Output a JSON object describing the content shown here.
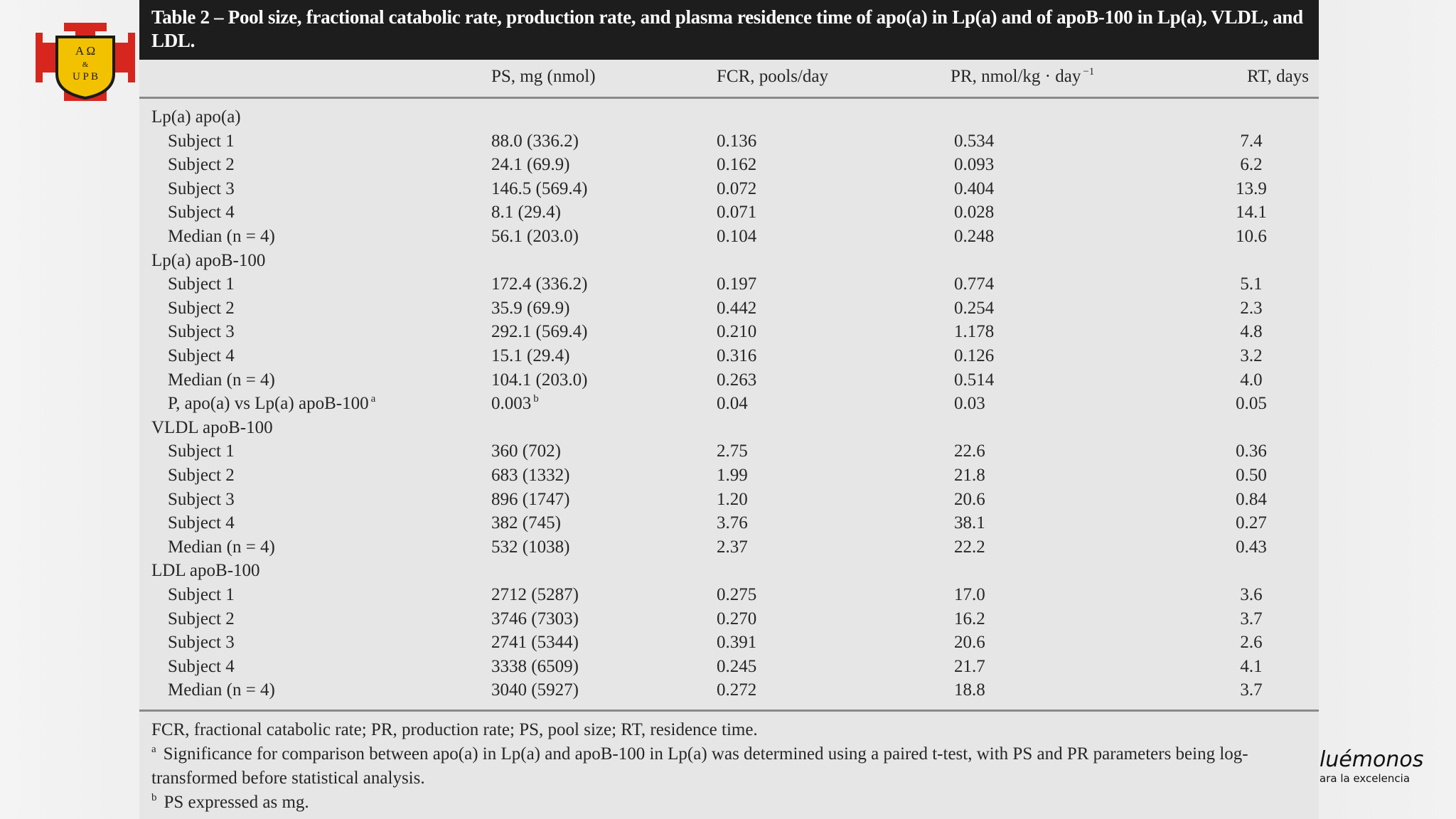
{
  "logo": {
    "top": "A Ω",
    "middle": "&",
    "bottom": "U P B"
  },
  "table": {
    "title": "Table 2 – Pool size, fractional catabolic rate, production rate, and plasma residence time of apo(a) in Lp(a) and of apoB-100 in Lp(a), VLDL, and LDL.",
    "columns": [
      {
        "text": "PS, mg (nmol)"
      },
      {
        "text": "FCR, pools/day"
      },
      {
        "text": "PR, nmol/kg · day",
        "sup": "−1"
      },
      {
        "text": "RT, days"
      }
    ],
    "sections": [
      {
        "label": "Lp(a) apo(a)",
        "rows": [
          {
            "label": {
              "text": "Subject 1"
            },
            "cells": [
              "88.0 (336.2)",
              "0.136",
              "0.534",
              "7.4"
            ]
          },
          {
            "label": {
              "text": "Subject 2"
            },
            "cells": [
              "24.1 (69.9)",
              "0.162",
              "0.093",
              "6.2"
            ]
          },
          {
            "label": {
              "text": "Subject 3"
            },
            "cells": [
              "146.5 (569.4)",
              "0.072",
              "0.404",
              "13.9"
            ]
          },
          {
            "label": {
              "text": "Subject 4"
            },
            "cells": [
              "8.1 (29.4)",
              "0.071",
              "0.028",
              "14.1"
            ]
          },
          {
            "label": {
              "text": "Median (n = 4)"
            },
            "cells": [
              "56.1 (203.0)",
              "0.104",
              "0.248",
              "10.6"
            ]
          }
        ]
      },
      {
        "label": "Lp(a) apoB-100",
        "rows": [
          {
            "label": {
              "text": "Subject 1"
            },
            "cells": [
              "172.4 (336.2)",
              "0.197",
              "0.774",
              "5.1"
            ]
          },
          {
            "label": {
              "text": "Subject 2"
            },
            "cells": [
              "35.9 (69.9)",
              "0.442",
              "0.254",
              "2.3"
            ]
          },
          {
            "label": {
              "text": "Subject 3"
            },
            "cells": [
              "292.1 (569.4)",
              "0.210",
              "1.178",
              "4.8"
            ]
          },
          {
            "label": {
              "text": "Subject 4"
            },
            "cells": [
              "15.1 (29.4)",
              "0.316",
              "0.126",
              "3.2"
            ]
          },
          {
            "label": {
              "text": "Median (n = 4)"
            },
            "cells": [
              "104.1 (203.0)",
              "0.263",
              "0.514",
              "4.0"
            ]
          },
          {
            "label": {
              "text": "P, apo(a) vs Lp(a) apoB-100",
              "sup": "a"
            },
            "cells": [
              {
                "text": "0.003",
                "sup": "b"
              },
              "0.04",
              "0.03",
              "0.05"
            ]
          }
        ]
      },
      {
        "label": "VLDL apoB-100",
        "rows": [
          {
            "label": {
              "text": "Subject 1"
            },
            "cells": [
              "360 (702)",
              "2.75",
              "22.6",
              "0.36"
            ]
          },
          {
            "label": {
              "text": "Subject 2"
            },
            "cells": [
              "683 (1332)",
              "1.99",
              "21.8",
              "0.50"
            ]
          },
          {
            "label": {
              "text": "Subject 3"
            },
            "cells": [
              "896 (1747)",
              "1.20",
              "20.6",
              "0.84"
            ]
          },
          {
            "label": {
              "text": "Subject 4"
            },
            "cells": [
              "382 (745)",
              "3.76",
              "38.1",
              "0.27"
            ]
          },
          {
            "label": {
              "text": "Median (n = 4)"
            },
            "cells": [
              "532 (1038)",
              "2.37",
              "22.2",
              "0.43"
            ]
          }
        ]
      },
      {
        "label": "LDL apoB-100",
        "rows": [
          {
            "label": {
              "text": "Subject 1"
            },
            "cells": [
              "2712 (5287)",
              "0.275",
              "17.0",
              "3.6"
            ]
          },
          {
            "label": {
              "text": "Subject 2"
            },
            "cells": [
              "3746 (7303)",
              "0.270",
              "16.2",
              "3.7"
            ]
          },
          {
            "label": {
              "text": "Subject 3"
            },
            "cells": [
              "2741 (5344)",
              "0.391",
              "20.6",
              "2.6"
            ]
          },
          {
            "label": {
              "text": "Subject 4"
            },
            "cells": [
              "3338 (6509)",
              "0.245",
              "21.7",
              "4.1"
            ]
          },
          {
            "label": {
              "text": "Median (n = 4)"
            },
            "cells": [
              "3040 (5927)",
              "0.272",
              "18.8",
              "3.7"
            ]
          }
        ]
      }
    ],
    "footnotes": [
      {
        "text": "FCR, fractional catabolic rate; PR, production rate; PS, pool size; RT, residence time."
      },
      {
        "mark": "a",
        "text": "Significance for comparison between apo(a) in Lp(a) and apoB-100 in Lp(a) was determined using a paired t-test, with PS and PR parameters being log-transformed before statistical analysis."
      },
      {
        "mark": "b",
        "text": "PS expressed as mg."
      }
    ]
  },
  "watermark": {
    "title": "luémonos",
    "subtitle": "ara la excelencia"
  }
}
